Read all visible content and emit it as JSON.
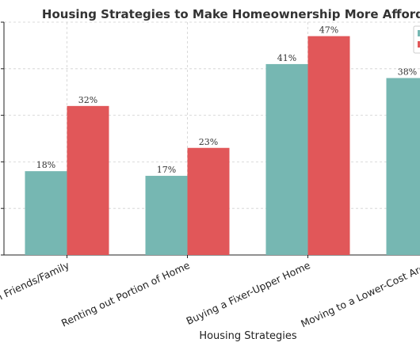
{
  "chart_data": {
    "type": "bar",
    "title": "Housing Strategies to Make Homeownership More Affordable",
    "xlabel": "Housing Strategies",
    "ylabel": "",
    "categories": [
      "Living with Friends/Family",
      "Renting out Portion of Home",
      "Buying a Fixer-Upper Home",
      "Moving to a Lower-Cost Area"
    ],
    "series": [
      {
        "color": "#76b7b2",
        "values": [
          18,
          17,
          41,
          38
        ],
        "labels": [
          "18%",
          "17%",
          "41%",
          "38%"
        ]
      },
      {
        "color": "#e15759",
        "values": [
          32,
          23,
          47,
          null
        ],
        "labels": [
          "32%",
          "23%",
          "47%",
          ""
        ]
      }
    ],
    "ylim": [
      0,
      50
    ],
    "grid": true,
    "legend_position": "top-right",
    "value_format": "percent"
  }
}
